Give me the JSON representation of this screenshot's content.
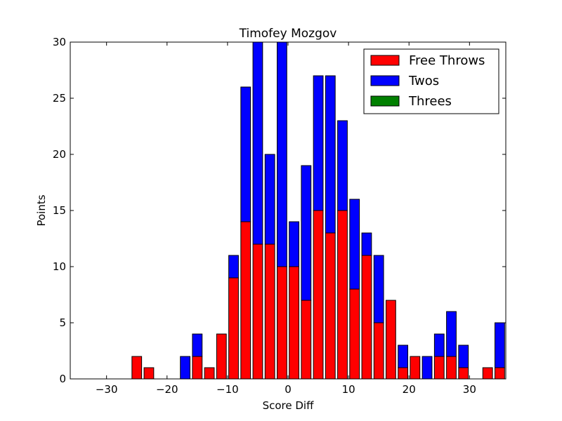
{
  "chart_data": {
    "type": "bar",
    "stacked": true,
    "title": "Timofey Mozgov",
    "xlabel": "Score Diff",
    "ylabel": "Points",
    "xlim": [
      -36,
      36
    ],
    "ylim": [
      0,
      30
    ],
    "xticks": [
      -30,
      -20,
      -10,
      0,
      10,
      20,
      30
    ],
    "xtick_labels": [
      "−30",
      "−20",
      "−10",
      "0",
      "10",
      "20",
      "30"
    ],
    "yticks": [
      0,
      5,
      10,
      15,
      20,
      25,
      30
    ],
    "ytick_labels": [
      "0",
      "5",
      "10",
      "15",
      "20",
      "25",
      "30"
    ],
    "legend_position": "top-right",
    "x": [
      -35,
      -33,
      -31,
      -29,
      -27,
      -25,
      -23,
      -21,
      -19,
      -17,
      -15,
      -13,
      -11,
      -9,
      -7,
      -5,
      -3,
      -1,
      1,
      3,
      5,
      7,
      9,
      11,
      13,
      15,
      17,
      19,
      21,
      23,
      25,
      27,
      29,
      31,
      33,
      35
    ],
    "series": [
      {
        "name": "Free Throws",
        "color": "#ff0000",
        "values": [
          0,
          0,
          0,
          0,
          0,
          2,
          1,
          0,
          0,
          0,
          2,
          1,
          4,
          9,
          14,
          12,
          12,
          10,
          10,
          7,
          15,
          13,
          15,
          8,
          11,
          5,
          7,
          1,
          2,
          0,
          2,
          2,
          1,
          0,
          1,
          1
        ]
      },
      {
        "name": "Twos",
        "color": "#0000ff",
        "values": [
          0,
          0,
          0,
          0,
          0,
          0,
          0,
          0,
          0,
          2,
          2,
          0,
          0,
          2,
          12,
          18,
          8,
          20,
          4,
          12,
          12,
          14,
          8,
          8,
          2,
          6,
          0,
          2,
          0,
          2,
          2,
          4,
          2,
          0,
          0,
          4
        ]
      },
      {
        "name": "Threes",
        "color": "#008000",
        "values": [
          0,
          0,
          0,
          0,
          0,
          0,
          0,
          0,
          0,
          0,
          0,
          0,
          0,
          0,
          0,
          0,
          0,
          0,
          0,
          0,
          0,
          0,
          0,
          0,
          0,
          0,
          0,
          0,
          0,
          0,
          0,
          0,
          0,
          0,
          0,
          0
        ]
      }
    ]
  }
}
